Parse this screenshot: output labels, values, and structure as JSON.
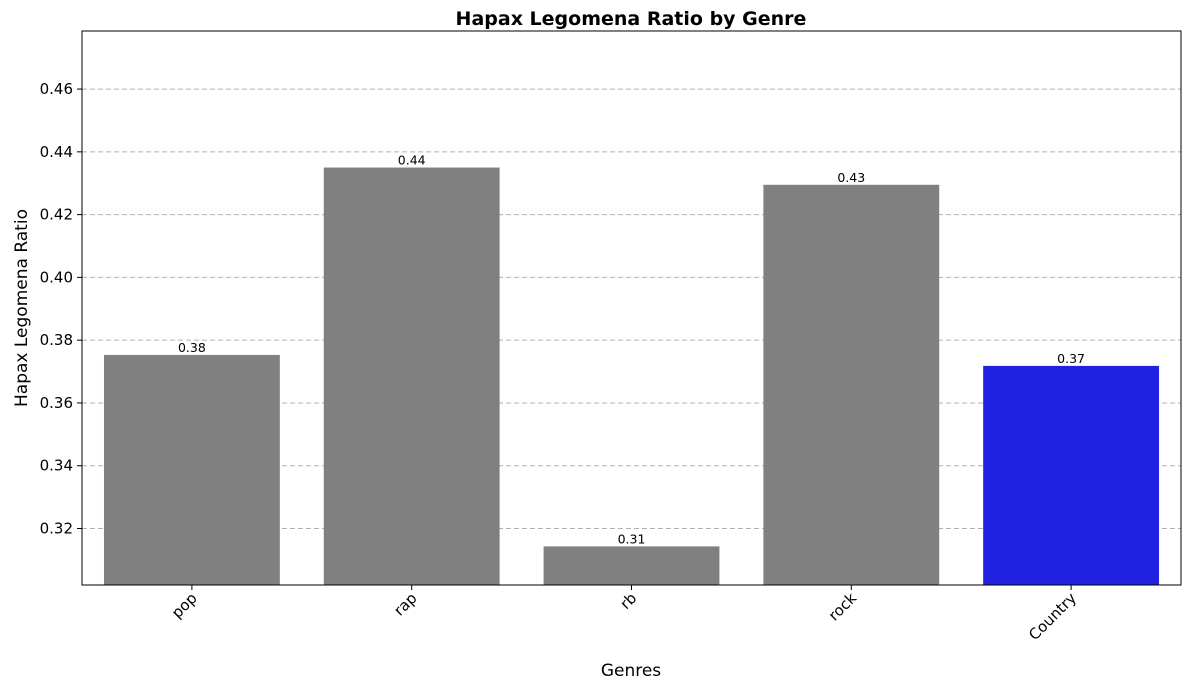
{
  "chart_data": {
    "type": "bar",
    "title": "Hapax Legomena Ratio by Genre",
    "xlabel": "Genres",
    "ylabel": "Hapax Legomena Ratio",
    "categories": [
      "pop",
      "rap",
      "rb",
      "rock",
      "Country"
    ],
    "values": [
      0.3753,
      0.435,
      0.3143,
      0.4295,
      0.3718
    ],
    "data_labels": [
      "0.38",
      "0.44",
      "0.31",
      "0.43",
      "0.37"
    ],
    "colors": [
      "#808080",
      "#808080",
      "#808080",
      "#808080",
      "#2020e0"
    ],
    "ylim": [
      0.302,
      0.4785
    ],
    "yticks": [
      0.32,
      0.34,
      0.36,
      0.38,
      0.4,
      0.42,
      0.44,
      0.46
    ],
    "ytick_labels": [
      "0.32",
      "0.34",
      "0.36",
      "0.38",
      "0.40",
      "0.42",
      "0.44",
      "0.46"
    ],
    "grid": "y-dashed",
    "xtick_rotation": 45
  }
}
